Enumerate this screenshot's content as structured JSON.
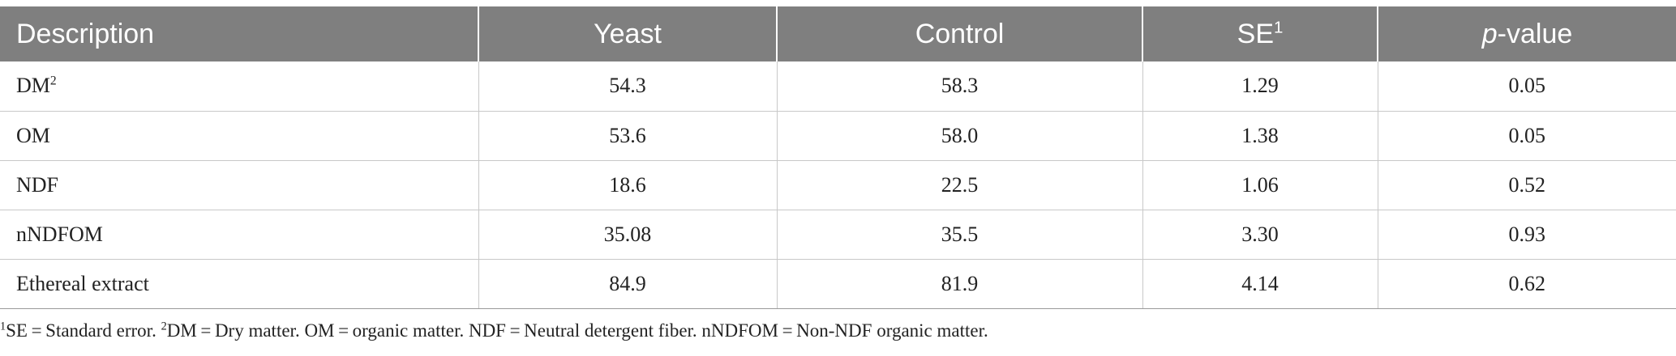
{
  "table": {
    "headers": {
      "description": "Description",
      "yeast": "Yeast",
      "control": "Control",
      "se_base": "SE",
      "se_sup": "1",
      "pvalue_p": "p",
      "pvalue_rest": "-value"
    },
    "rows": [
      {
        "desc": "DM",
        "desc_sup": "2",
        "yeast": "54.3",
        "control": "58.3",
        "se": "1.29",
        "p": "0.05"
      },
      {
        "desc": "OM",
        "desc_sup": "",
        "yeast": "53.6",
        "control": "58.0",
        "se": "1.38",
        "p": "0.05"
      },
      {
        "desc": "NDF",
        "desc_sup": "",
        "yeast": "18.6",
        "control": "22.5",
        "se": "1.06",
        "p": "0.52"
      },
      {
        "desc": "nNDFOM",
        "desc_sup": "",
        "yeast": "35.08",
        "control": "35.5",
        "se": "3.30",
        "p": "0.93"
      },
      {
        "desc": "Ethereal extract",
        "desc_sup": "",
        "yeast": "84.9",
        "control": "81.9",
        "se": "4.14",
        "p": "0.62"
      }
    ]
  },
  "footnote": {
    "sup1": "1",
    "text1": "SE = Standard error. ",
    "sup2": "2",
    "text2": "DM = Dry matter. OM = organic matter. NDF = Neutral detergent fiber. nNDFOM = Non-NDF organic matter."
  }
}
